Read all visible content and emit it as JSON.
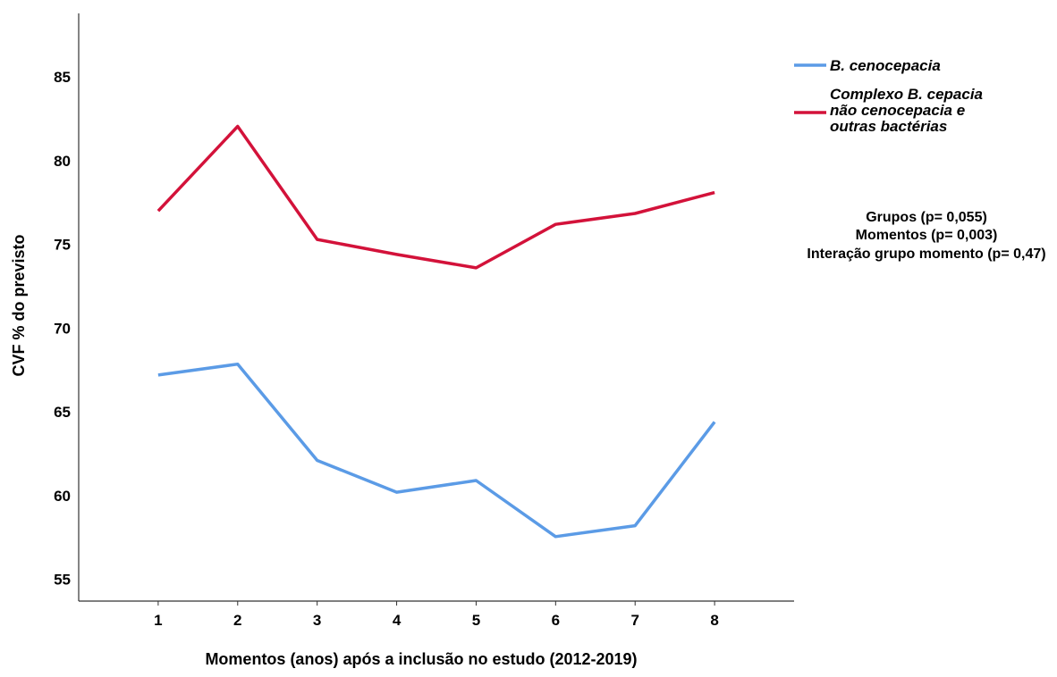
{
  "chart_data": {
    "type": "line",
    "x": [
      1,
      2,
      3,
      4,
      5,
      6,
      7,
      8
    ],
    "series": [
      {
        "name": "B. cenocepacia",
        "color": "#5b9be6",
        "values": [
          67.2,
          67.85,
          62.1,
          60.2,
          60.9,
          57.55,
          58.2,
          64.4
        ]
      },
      {
        "name": "Complexo B. cepacia não cenocepacia e outras bactérias",
        "name_lines": [
          "Complexo B. cepacia",
          "não cenocepacia e",
          "outras bactérias"
        ],
        "color": "#d3123a",
        "values": [
          77.0,
          82.05,
          75.3,
          74.4,
          73.6,
          76.2,
          76.85,
          78.1
        ]
      }
    ],
    "xlabel": "Momentos (anos) após a inclusão no estudo (2012-2019)",
    "ylabel": "CVF % do previsto",
    "xticks": [
      "1",
      "2",
      "3",
      "4",
      "5",
      "6",
      "7",
      "8"
    ],
    "yticks": [
      "55",
      "60",
      "65",
      "70",
      "75",
      "80",
      "85"
    ],
    "xlim": [
      0,
      9
    ],
    "ylim": [
      53.7,
      88.8
    ],
    "grid": false,
    "legend_position": "top-right",
    "annotations": [
      "Grupos (p= 0,055)",
      "Momentos (p= 0,003)",
      "Interação grupo momento (p= 0,47)"
    ]
  }
}
